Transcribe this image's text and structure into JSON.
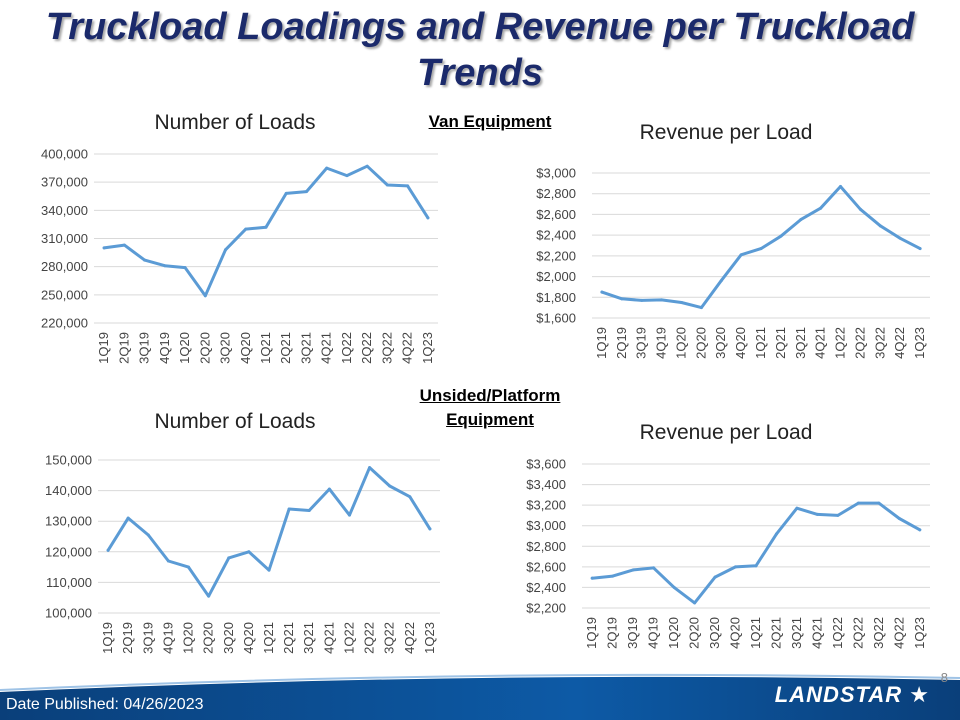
{
  "slide": {
    "title_line1": "Truckload Loadings and Revenue per Truckload",
    "title_line2": "Trends",
    "van_label": "Van Equipment",
    "unsided_label_line1": "Unsided/Platform",
    "unsided_label_line2": "Equipment",
    "page_number": "8",
    "date_published": "Date Published:  04/26/2023",
    "logo_text": "LANDSTAR"
  },
  "colors": {
    "series": "#5b9bd5",
    "grid": "#d9d9d9",
    "title": "#1b2a6b",
    "footer": "#0a4a8c"
  },
  "chart_data": [
    {
      "id": "van-loads",
      "type": "line",
      "title": "Number of Loads",
      "categories": [
        "1Q19",
        "2Q19",
        "3Q19",
        "4Q19",
        "1Q20",
        "2Q20",
        "3Q20",
        "4Q20",
        "1Q21",
        "2Q21",
        "3Q21",
        "4Q21",
        "1Q22",
        "2Q22",
        "3Q22",
        "4Q22",
        "1Q23"
      ],
      "values": [
        300000,
        303000,
        287000,
        281000,
        279000,
        249000,
        298000,
        320000,
        322000,
        358000,
        360000,
        385000,
        377000,
        387000,
        367000,
        366000,
        332000
      ],
      "ylim": [
        220000,
        400000
      ],
      "yticks": [
        220000,
        250000,
        280000,
        310000,
        340000,
        370000,
        400000
      ],
      "ytick_labels": [
        "220,000",
        "250,000",
        "280,000",
        "310,000",
        "340,000",
        "370,000",
        "400,000"
      ]
    },
    {
      "id": "van-revenue",
      "type": "line",
      "title": "Revenue per Load",
      "categories": [
        "1Q19",
        "2Q19",
        "3Q19",
        "4Q19",
        "1Q20",
        "2Q20",
        "3Q20",
        "4Q20",
        "1Q21",
        "2Q21",
        "3Q21",
        "4Q21",
        "1Q22",
        "2Q22",
        "3Q22",
        "4Q22",
        "1Q23"
      ],
      "values": [
        1850,
        1785,
        1770,
        1775,
        1750,
        1700,
        1960,
        2210,
        2270,
        2390,
        2550,
        2660,
        2870,
        2650,
        2490,
        2370,
        2270
      ],
      "ylim": [
        1600,
        3000
      ],
      "yticks": [
        1600,
        1800,
        2000,
        2200,
        2400,
        2600,
        2800,
        3000
      ],
      "ytick_labels": [
        "$1,600",
        "$1,800",
        "$2,000",
        "$2,200",
        "$2,400",
        "$2,600",
        "$2,800",
        "$3,000"
      ]
    },
    {
      "id": "unsided-loads",
      "type": "line",
      "title": "Number of Loads",
      "categories": [
        "1Q19",
        "2Q19",
        "3Q19",
        "4Q19",
        "1Q20",
        "2Q20",
        "3Q20",
        "4Q20",
        "1Q21",
        "2Q21",
        "3Q21",
        "4Q21",
        "1Q22",
        "2Q22",
        "3Q22",
        "4Q22",
        "1Q23"
      ],
      "values": [
        120500,
        131000,
        125500,
        117000,
        115000,
        105500,
        118000,
        120000,
        114000,
        134000,
        133500,
        140500,
        132000,
        147500,
        141500,
        138000,
        127500
      ],
      "ylim": [
        100000,
        150000
      ],
      "yticks": [
        100000,
        110000,
        120000,
        130000,
        140000,
        150000
      ],
      "ytick_labels": [
        "100,000",
        "110,000",
        "120,000",
        "130,000",
        "140,000",
        "150,000"
      ]
    },
    {
      "id": "unsided-revenue",
      "type": "line",
      "title": "Revenue per Load",
      "categories": [
        "1Q19",
        "2Q19",
        "3Q19",
        "4Q19",
        "1Q20",
        "2Q20",
        "3Q20",
        "4Q20",
        "1Q21",
        "2Q21",
        "3Q21",
        "4Q21",
        "1Q22",
        "2Q22",
        "3Q22",
        "4Q22",
        "1Q23"
      ],
      "values": [
        2490,
        2510,
        2570,
        2590,
        2400,
        2250,
        2500,
        2600,
        2610,
        2920,
        3170,
        3110,
        3100,
        3220,
        3220,
        3070,
        2960
      ],
      "ylim": [
        2200,
        3600
      ],
      "yticks": [
        2200,
        2400,
        2600,
        2800,
        3000,
        3200,
        3400,
        3600
      ],
      "ytick_labels": [
        "$2,200",
        "$2,400",
        "$2,600",
        "$2,800",
        "$3,000",
        "$3,200",
        "$3,400",
        "$3,600"
      ]
    }
  ]
}
